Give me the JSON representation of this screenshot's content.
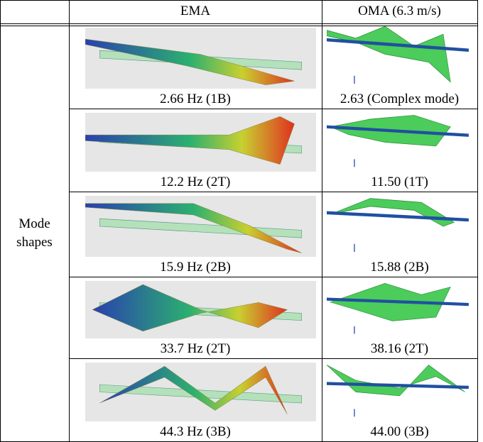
{
  "table": {
    "header": [
      "EMA",
      "OMA (6.3 m/s)"
    ],
    "row_label": "Mode shapes",
    "rows": [
      [
        "2.66 Hz (1B)",
        "2.63 (Complex mode)"
      ],
      [
        "12.2 Hz (2T)",
        "11.50 (1T)"
      ],
      [
        "15.9 Hz (2B)",
        "15.88 (2B)"
      ],
      [
        "33.7 Hz (2T)",
        "38.16 (2T)"
      ],
      [
        "44.3 Hz (3B)",
        "44.00 (3B)"
      ]
    ]
  }
}
